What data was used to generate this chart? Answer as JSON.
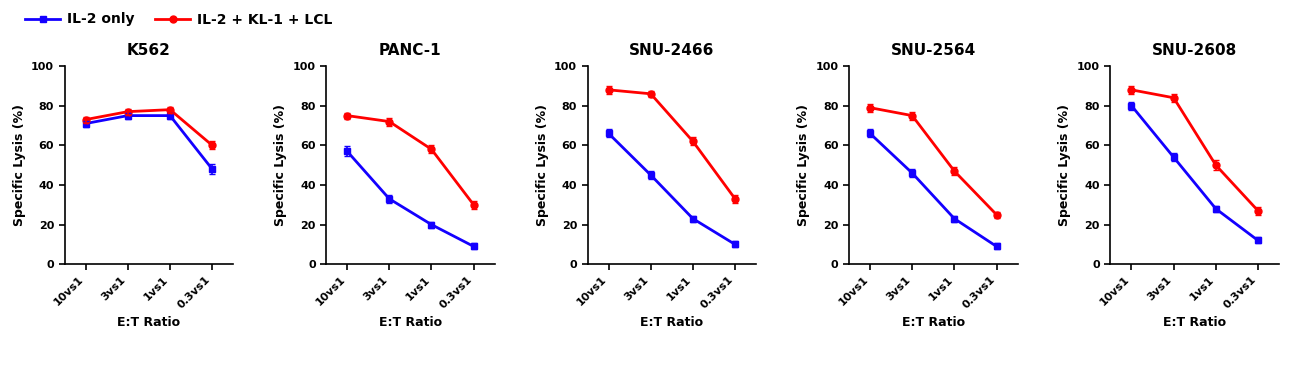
{
  "panels": [
    {
      "title": "K562",
      "blue_y": [
        71,
        75,
        75,
        48
      ],
      "red_y": [
        73,
        77,
        78,
        60
      ],
      "blue_err": [
        1.5,
        1.5,
        1.5,
        2.5
      ],
      "red_err": [
        1.5,
        1.5,
        1.5,
        2.0
      ]
    },
    {
      "title": "PANC-1",
      "blue_y": [
        57,
        33,
        20,
        9
      ],
      "red_y": [
        75,
        72,
        58,
        30
      ],
      "blue_err": [
        2.5,
        2.0,
        1.5,
        1.5
      ],
      "red_err": [
        1.5,
        2.0,
        2.0,
        2.0
      ]
    },
    {
      "title": "SNU-2466",
      "blue_y": [
        66,
        45,
        23,
        10
      ],
      "red_y": [
        88,
        86,
        62,
        33
      ],
      "blue_err": [
        2.0,
        2.0,
        1.5,
        1.5
      ],
      "red_err": [
        2.0,
        1.5,
        2.0,
        2.0
      ]
    },
    {
      "title": "SNU-2564",
      "blue_y": [
        66,
        46,
        23,
        9
      ],
      "red_y": [
        79,
        75,
        47,
        25
      ],
      "blue_err": [
        2.0,
        2.0,
        1.5,
        1.5
      ],
      "red_err": [
        2.0,
        2.0,
        2.0,
        1.5
      ]
    },
    {
      "title": "SNU-2608",
      "blue_y": [
        80,
        54,
        28,
        12
      ],
      "red_y": [
        88,
        84,
        50,
        27
      ],
      "blue_err": [
        2.0,
        2.0,
        1.5,
        1.5
      ],
      "red_err": [
        2.0,
        2.0,
        2.5,
        2.0
      ]
    }
  ],
  "ylim": [
    0,
    100
  ],
  "yticks": [
    0,
    20,
    40,
    60,
    80,
    100
  ],
  "x_labels": [
    "10vs1",
    "3vs1",
    "1vs1",
    "0.3vs1"
  ],
  "xlabel": "E:T Ratio",
  "ylabel": "Specific Lysis (%)",
  "legend_blue": "IL-2 only",
  "legend_red": "IL-2 + KL-1 + LCL",
  "blue_color": "#1400FF",
  "red_color": "#FF0000",
  "marker_blue": "s",
  "marker_red": "o",
  "linewidth": 2.0,
  "markersize": 5,
  "title_fontsize": 11,
  "label_fontsize": 9,
  "tick_fontsize": 8,
  "legend_fontsize": 10,
  "background_color": "#FFFFFF"
}
